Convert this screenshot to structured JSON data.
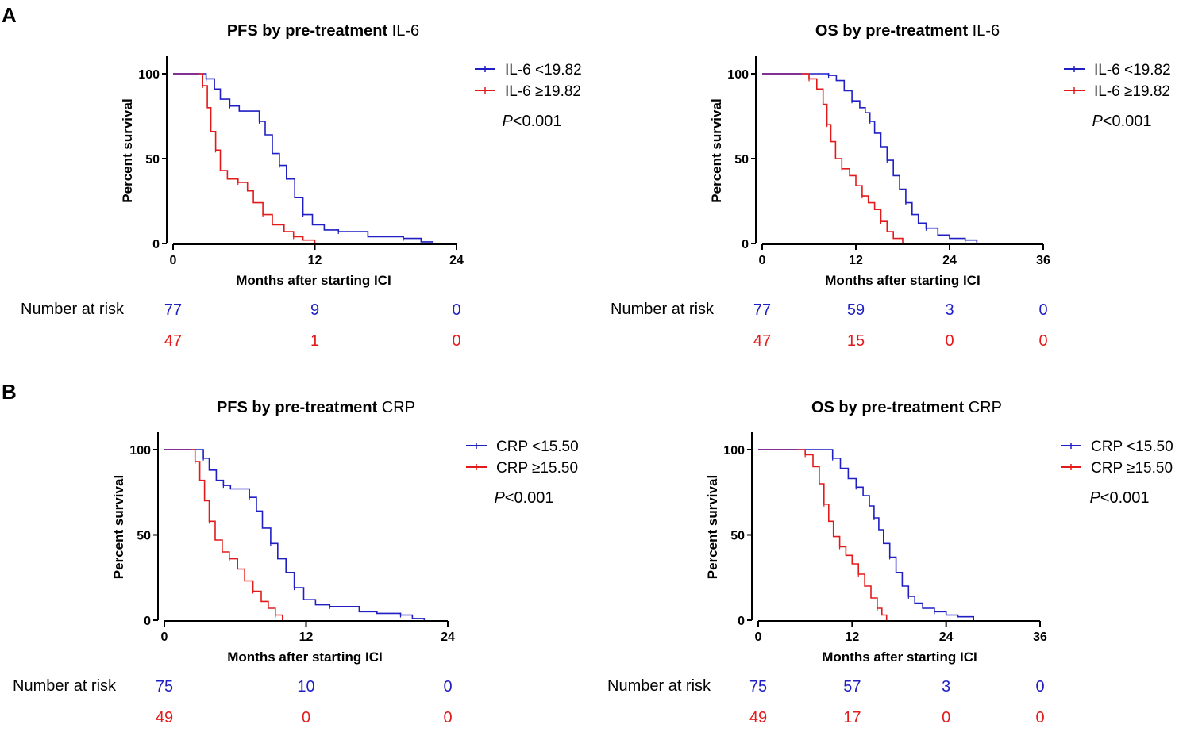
{
  "colors": {
    "group1": "#1f1fc4",
    "group2": "#e31a1a",
    "axis": "#000000"
  },
  "panel_labels": [
    "A",
    "B"
  ],
  "risk_label": "Number at risk",
  "chart_data": [
    {
      "type": "line",
      "title_bold": "PFS by pre-treatment",
      "title_rest": "IL-6",
      "xlabel": "Months after starting ICI",
      "ylabel": "Percent survival",
      "xlim": [
        0,
        24
      ],
      "ylim": [
        0,
        100
      ],
      "xticks": [
        0,
        12,
        24
      ],
      "yticks": [
        0,
        50,
        100
      ],
      "p_prefix": "P",
      "p_value": "<0.001",
      "series": [
        {
          "name": "IL-6 <19.82",
          "color": "#1f1fc4",
          "x": [
            0,
            2.2,
            2.8,
            3.5,
            4.0,
            4.8,
            5.6,
            6.6,
            7.3,
            7.8,
            8.4,
            9.0,
            9.6,
            10.3,
            11.0,
            11.8,
            12.8,
            14.0,
            16.5,
            18.0,
            19.5,
            21.0,
            22.0
          ],
          "y": [
            100,
            100,
            97,
            91,
            85,
            81,
            78,
            78,
            72,
            64,
            53,
            46,
            38,
            27,
            17,
            11,
            8,
            7,
            4,
            4,
            3,
            1,
            0
          ],
          "risk": [
            "77",
            "9",
            "0"
          ]
        },
        {
          "name": "IL-6 ≥19.82",
          "color": "#e31a1a",
          "x": [
            0,
            2.2,
            2.5,
            2.9,
            3.2,
            3.6,
            4.0,
            4.6,
            5.5,
            6.3,
            6.8,
            7.6,
            8.4,
            9.4,
            10.2,
            11.0,
            12.0
          ],
          "y": [
            100,
            100,
            93,
            80,
            66,
            55,
            43,
            38,
            36,
            31,
            24,
            17,
            11,
            7,
            4,
            2,
            0
          ],
          "risk": [
            "47",
            "1",
            "0"
          ]
        }
      ]
    },
    {
      "type": "line",
      "title_bold": "OS by pre-treatment",
      "title_rest": "IL-6",
      "xlabel": "Months after starting ICI",
      "ylabel": "Percent survival",
      "xlim": [
        0,
        36
      ],
      "ylim": [
        0,
        100
      ],
      "xticks": [
        0,
        12,
        24,
        36
      ],
      "yticks": [
        0,
        50,
        100
      ],
      "p_prefix": "P",
      "p_value": "<0.001",
      "series": [
        {
          "name": "IL-6 <19.82",
          "color": "#1f1fc4",
          "x": [
            0,
            7.5,
            8.5,
            9.5,
            10.5,
            11.5,
            12.5,
            13.2,
            13.8,
            14.4,
            15.2,
            16.0,
            16.8,
            17.6,
            18.4,
            19.2,
            20.0,
            21.0,
            22.5,
            24.0,
            26.0,
            27.5
          ],
          "y": [
            100,
            100,
            99,
            96,
            90,
            84,
            80,
            77,
            72,
            65,
            57,
            49,
            40,
            32,
            24,
            17,
            12,
            9,
            5,
            3,
            2,
            0
          ],
          "risk": [
            "77",
            "59",
            "3",
            "0"
          ]
        },
        {
          "name": "IL-6 ≥19.82",
          "color": "#e31a1a",
          "x": [
            0,
            5.0,
            6.0,
            7.0,
            7.8,
            8.3,
            8.8,
            9.4,
            10.2,
            11.2,
            12.0,
            12.8,
            13.6,
            14.4,
            15.2,
            16.0,
            16.8,
            18.0
          ],
          "y": [
            100,
            100,
            97,
            91,
            82,
            70,
            60,
            50,
            44,
            40,
            34,
            28,
            24,
            20,
            13,
            7,
            3,
            0
          ],
          "risk": [
            "47",
            "15",
            "0",
            "0"
          ]
        }
      ]
    },
    {
      "type": "line",
      "title_bold": "PFS by pre-treatment",
      "title_rest": "CRP",
      "xlabel": "Months after starting ICI",
      "ylabel": "Percent survival",
      "xlim": [
        0,
        24
      ],
      "ylim": [
        0,
        100
      ],
      "xticks": [
        0,
        12,
        24
      ],
      "yticks": [
        0,
        50,
        100
      ],
      "p_prefix": "P",
      "p_value": "<0.001",
      "series": [
        {
          "name": "CRP <15.50",
          "color": "#1f1fc4",
          "x": [
            0,
            2.8,
            3.3,
            3.8,
            4.4,
            5.0,
            5.6,
            6.6,
            7.2,
            7.8,
            8.3,
            9.0,
            9.6,
            10.3,
            11.0,
            11.8,
            12.8,
            14.0,
            16.5,
            18.0,
            20.0,
            21.0,
            22.0
          ],
          "y": [
            100,
            100,
            95,
            88,
            82,
            79,
            77,
            77,
            72,
            64,
            54,
            45,
            36,
            28,
            19,
            12,
            9,
            8,
            5,
            4,
            3,
            1,
            0
          ],
          "risk": [
            "75",
            "10",
            "0"
          ]
        },
        {
          "name": "CRP ≥15.50",
          "color": "#e31a1a",
          "x": [
            0,
            2.2,
            2.6,
            3.0,
            3.4,
            3.8,
            4.3,
            4.9,
            5.5,
            6.2,
            6.8,
            7.5,
            8.2,
            8.8,
            9.4,
            10.0
          ],
          "y": [
            100,
            100,
            93,
            82,
            70,
            58,
            47,
            40,
            36,
            30,
            23,
            17,
            11,
            7,
            3,
            0
          ],
          "risk": [
            "49",
            "0",
            "0"
          ]
        }
      ]
    },
    {
      "type": "line",
      "title_bold": "OS by pre-treatment",
      "title_rest": "CRP",
      "xlabel": "Months after starting ICI",
      "ylabel": "Percent survival",
      "xlim": [
        0,
        36
      ],
      "ylim": [
        0,
        100
      ],
      "xticks": [
        0,
        12,
        24,
        36
      ],
      "yticks": [
        0,
        50,
        100
      ],
      "p_prefix": "P",
      "p_value": "<0.001",
      "series": [
        {
          "name": "CRP <15.50",
          "color": "#1f1fc4",
          "x": [
            0,
            8.5,
            9.5,
            10.5,
            11.5,
            12.5,
            13.4,
            14.2,
            14.8,
            15.4,
            16.0,
            16.8,
            17.6,
            18.4,
            19.2,
            20.0,
            21.0,
            22.5,
            24.0,
            25.5,
            27.5
          ],
          "y": [
            100,
            100,
            95,
            89,
            83,
            78,
            73,
            67,
            60,
            53,
            45,
            37,
            28,
            20,
            14,
            10,
            7,
            5,
            3,
            2,
            0
          ],
          "risk": [
            "75",
            "57",
            "3",
            "0"
          ]
        },
        {
          "name": "CRP ≥15.50",
          "color": "#e31a1a",
          "x": [
            0,
            5.0,
            6.0,
            7.0,
            7.8,
            8.4,
            9.0,
            9.6,
            10.4,
            11.2,
            12.0,
            12.8,
            13.6,
            14.4,
            15.2,
            15.8,
            16.4
          ],
          "y": [
            100,
            100,
            97,
            90,
            80,
            68,
            58,
            49,
            43,
            38,
            33,
            27,
            20,
            13,
            7,
            3,
            0
          ],
          "risk": [
            "49",
            "17",
            "0",
            "0"
          ]
        }
      ]
    }
  ]
}
